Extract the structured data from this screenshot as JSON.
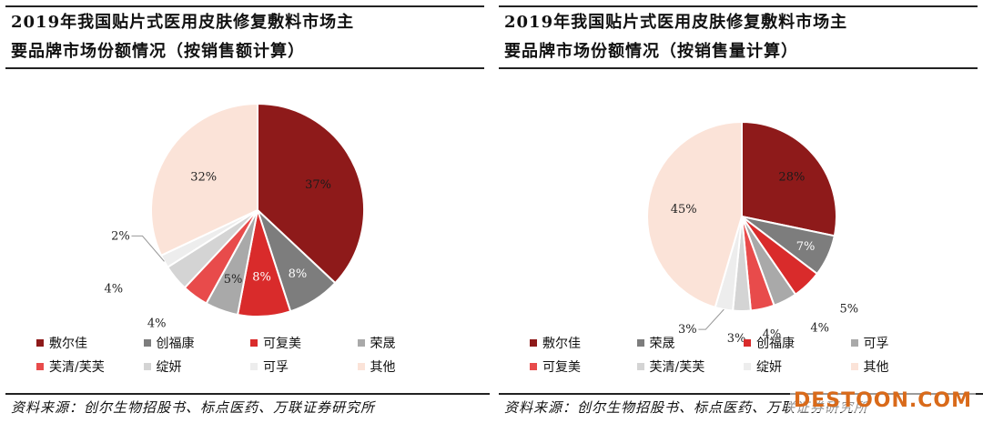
{
  "colors": {
    "dark_red": "#8e1a1a",
    "gray": "#7d7d7d",
    "red": "#e03434",
    "light_gray": "#b0b0b0",
    "bright_red": "#e84b4b",
    "lighter_gray": "#d2d2d2",
    "very_light_gray": "#ececec",
    "peach": "#fbe3d8"
  },
  "charts": [
    {
      "title_line1": "2019年我国贴片式医用皮肤修复敷料市场主",
      "title_line2": "要品牌市场份额情况（按销售额计算）",
      "legend": [
        "敷尔佳",
        "创福康",
        "可复美",
        "荣晟",
        "芙清/芙芙",
        "绽妍",
        "可孚",
        "其他"
      ],
      "source": "资料来源：创尔生物招股书、标点医药、万联证券研究所"
    },
    {
      "title_line1": "2019年我国贴片式医用皮肤修复敷料市场主",
      "title_line2": "要品牌市场份额情况（按销售量计算）",
      "legend": [
        "敷尔佳",
        "荣晟",
        "创福康",
        "可孚",
        "可复美",
        "芙清/芙芙",
        "绽妍",
        "其他"
      ],
      "source": "资料来源：创尔生物招股书、标点医药、万联证券研究所"
    }
  ],
  "chart_data": [
    {
      "type": "pie",
      "title": "2019年我国贴片式医用皮肤修复敷料市场主要品牌市场份额情况（按销售额计算）",
      "legend_position": "bottom",
      "slices": [
        {
          "name": "敷尔佳",
          "value": 37,
          "label": "37%",
          "color": "#8e1a1a"
        },
        {
          "name": "创福康",
          "value": 8,
          "label": "8%",
          "color": "#7d7d7d"
        },
        {
          "name": "可复美",
          "value": 8,
          "label": "8%",
          "color": "#d92b2b"
        },
        {
          "name": "荣晟",
          "value": 5,
          "label": "5%",
          "color": "#a9a9a9"
        },
        {
          "name": "芙清/芙芙",
          "value": 4,
          "label": "4%",
          "color": "#e84b4b"
        },
        {
          "name": "绽妍",
          "value": 4,
          "label": "4%",
          "color": "#d4d4d4"
        },
        {
          "name": "可孚",
          "value": 2,
          "label": "2%",
          "color": "#ededed"
        },
        {
          "name": "其他",
          "value": 32,
          "label": "32%",
          "color": "#fbe3d8"
        }
      ]
    },
    {
      "type": "pie",
      "title": "2019年我国贴片式医用皮肤修复敷料市场主要品牌市场份额情况（按销售量计算）",
      "legend_position": "bottom",
      "slices": [
        {
          "name": "敷尔佳",
          "value": 28,
          "label": "28%",
          "color": "#8e1a1a"
        },
        {
          "name": "荣晟",
          "value": 7,
          "label": "7%",
          "color": "#7d7d7d"
        },
        {
          "name": "创福康",
          "value": 5,
          "label": "5%",
          "color": "#d92b2b"
        },
        {
          "name": "可孚",
          "value": 4,
          "label": "4%",
          "color": "#a9a9a9"
        },
        {
          "name": "可复美",
          "value": 4,
          "label": "4%",
          "color": "#e84b4b"
        },
        {
          "name": "芙清/芙芙",
          "value": 3,
          "label": "3%",
          "color": "#d4d4d4"
        },
        {
          "name": "绽妍",
          "value": 3,
          "label": "3%",
          "color": "#ededed"
        },
        {
          "name": "其他",
          "value": 45,
          "label": "45%",
          "color": "#fbe3d8"
        }
      ]
    }
  ],
  "watermark": "DESTOON.COM"
}
